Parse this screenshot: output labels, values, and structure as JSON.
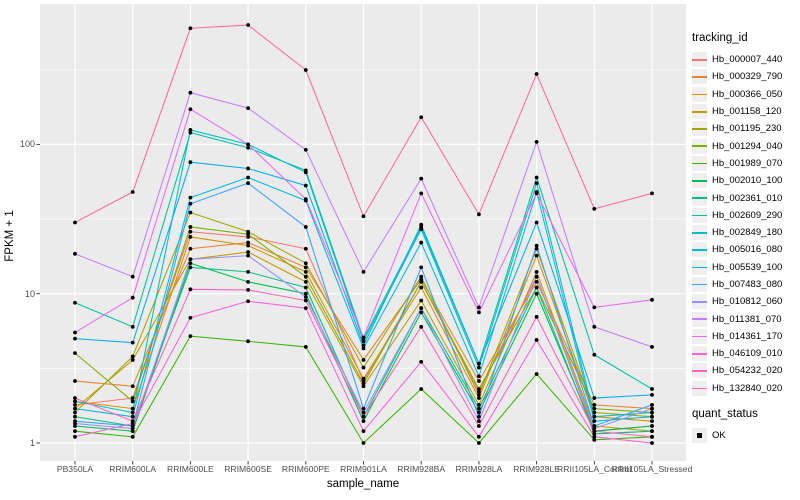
{
  "chart_data": {
    "type": "line",
    "title": "",
    "xlabel": "sample_name",
    "ylabel": "FPKM + 1",
    "y_scale": "log10",
    "y_ticks": [
      1,
      10,
      100
    ],
    "y_minor_ticks": [
      3.162,
      31.623,
      316.228
    ],
    "ylim_approx": [
      0.8,
      870
    ],
    "grid": "on",
    "legend_position": "right",
    "categories": [
      "PB350LA",
      "RRIM600LA",
      "RRIM600LE",
      "RRIM600SE",
      "RRIM600PE",
      "RRIM901LA",
      "RRIM928BA",
      "RRIM928LA",
      "RRIM928LE",
      "RRII105LA_Control",
      "RRII105LA_Stressed"
    ],
    "series": [
      {
        "name": "Hb_000007_440",
        "color": "#F8766D",
        "values": [
          1.8,
          2.0,
          26,
          24,
          20,
          2.6,
          12,
          2.2,
          13,
          1.2,
          1.3
        ]
      },
      {
        "name": "Hb_000329_790",
        "color": "#EA8331",
        "values": [
          2.6,
          2.4,
          20,
          22,
          15,
          3.6,
          12.5,
          2.6,
          12,
          1.8,
          1.7
        ]
      },
      {
        "name": "Hb_000366_050",
        "color": "#D89000",
        "values": [
          1.9,
          1.7,
          24,
          21,
          14,
          2.7,
          11,
          2.0,
          18,
          1.5,
          1.4
        ]
      },
      {
        "name": "Hb_001158_120",
        "color": "#C09B00",
        "values": [
          1.7,
          3.6,
          17,
          19,
          12,
          2.4,
          9,
          1.8,
          14,
          1.3,
          1.2
        ]
      },
      {
        "name": "Hb_001195_230",
        "color": "#A3A500",
        "values": [
          1.6,
          3.8,
          35,
          26,
          16,
          3.2,
          13,
          2.1,
          20,
          1.6,
          1.5
        ]
      },
      {
        "name": "Hb_001294_040",
        "color": "#7CAE00",
        "values": [
          4.0,
          1.9,
          28,
          25,
          13,
          2.5,
          12,
          2.3,
          11,
          1.7,
          1.6
        ]
      },
      {
        "name": "Hb_001989_070",
        "color": "#39B600",
        "values": [
          1.2,
          1.1,
          5.2,
          4.8,
          4.4,
          1.0,
          2.3,
          1.0,
          2.9,
          1.05,
          1.1
        ]
      },
      {
        "name": "Hb_002010_100",
        "color": "#00BB4E",
        "values": [
          1.3,
          1.2,
          16,
          12,
          10,
          1.4,
          7.5,
          1.6,
          10,
          1.2,
          1.3
        ]
      },
      {
        "name": "Hb_002361_010",
        "color": "#00C087",
        "values": [
          1.5,
          1.3,
          15,
          14,
          11,
          1.5,
          8.0,
          1.7,
          11,
          1.15,
          1.2
        ]
      },
      {
        "name": "Hb_002609_290",
        "color": "#00C1A3",
        "values": [
          8.7,
          6.0,
          120,
          95,
          67,
          5.0,
          28,
          3.4,
          60,
          3.9,
          2.3
        ]
      },
      {
        "name": "Hb_002849_180",
        "color": "#00BFC4",
        "values": [
          1.9,
          1.6,
          125,
          100,
          65,
          4.8,
          27,
          3.2,
          55,
          1.5,
          1.6
        ]
      },
      {
        "name": "Hb_005016_080",
        "color": "#00BAE0",
        "values": [
          1.7,
          1.5,
          44,
          60,
          42,
          4.3,
          22,
          2.8,
          48,
          1.4,
          1.5
        ]
      },
      {
        "name": "Hb_005539_100",
        "color": "#00B0F6",
        "values": [
          5.0,
          4.7,
          76,
          69,
          53,
          4.5,
          29,
          3.4,
          30,
          2.0,
          2.1
        ]
      },
      {
        "name": "Hb_007483_080",
        "color": "#35A2FF",
        "values": [
          1.4,
          1.3,
          40,
          55,
          28,
          1.7,
          15,
          1.5,
          21,
          1.3,
          1.8
        ]
      },
      {
        "name": "Hb_010812_060",
        "color": "#9590FF",
        "values": [
          1.35,
          1.25,
          17,
          18,
          9.5,
          1.6,
          8.0,
          1.4,
          13,
          1.25,
          1.7
        ]
      },
      {
        "name": "Hb_011381_070",
        "color": "#C77CFF",
        "values": [
          18.5,
          13,
          222,
          175,
          92,
          14,
          59,
          8.1,
          104,
          6.0,
          4.4
        ]
      },
      {
        "name": "Hb_014361_170",
        "color": "#E76BF3",
        "values": [
          5.5,
          9.4,
          172,
          100,
          43,
          5.1,
          47,
          7.5,
          47,
          8.1,
          9.1
        ]
      },
      {
        "name": "Hb_046109_010",
        "color": "#FA62DB",
        "values": [
          1.1,
          1.35,
          6.9,
          8.9,
          8.0,
          1.2,
          3.5,
          1.1,
          4.9,
          1.1,
          1.0
        ]
      },
      {
        "name": "Hb_054232_020",
        "color": "#FF62BC",
        "values": [
          2.0,
          1.4,
          10.7,
          10.6,
          9.0,
          1.5,
          6.0,
          1.3,
          7.0,
          1.2,
          1.1
        ]
      },
      {
        "name": "Hb_132840_020",
        "color": "#FF6A98",
        "values": [
          30,
          48,
          600,
          630,
          315,
          33,
          152,
          34,
          296,
          37,
          47
        ]
      }
    ],
    "legend": {
      "tracking_title": "tracking_id",
      "quant_title": "quant_status",
      "quant_item": "OK"
    },
    "colors": {
      "panel_bg": "#EBEBEB",
      "grid": "#FFFFFF",
      "tick_text": "#4D4D4D",
      "tick_mark": "#333333",
      "point": "#000000",
      "legend_key_bg": "#EFEFEF"
    }
  }
}
